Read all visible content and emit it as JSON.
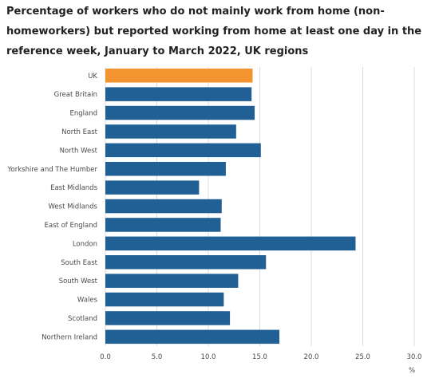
{
  "chart_data": {
    "type": "bar",
    "orientation": "horizontal",
    "title": "Percentage of workers who do not mainly work from home (non-homeworkers) but reported working from home at least one day in the reference week, January to March 2022, UK regions",
    "xlabel": "%",
    "ylabel": "",
    "categories": [
      "UK",
      "Great Britain",
      "England",
      "North East",
      "North West",
      "Yorkshire and The Humber",
      "East Midlands",
      "West Midlands",
      "East of England",
      "London",
      "South East",
      "South West",
      "Wales",
      "Scotland",
      "Northern Ireland"
    ],
    "values": [
      14.3,
      14.2,
      14.5,
      12.7,
      15.1,
      11.7,
      9.1,
      11.3,
      11.2,
      24.3,
      15.6,
      12.9,
      11.5,
      12.1,
      16.9
    ],
    "xlim": [
      0,
      30
    ],
    "xticks": [
      "0.0",
      "5.0",
      "10.0",
      "15.0",
      "20.0",
      "25.0",
      "30.0"
    ],
    "grid": true,
    "legend": "none",
    "colors": {
      "highlight": "#f39431",
      "default": "#206095"
    },
    "highlight_category": "UK"
  }
}
